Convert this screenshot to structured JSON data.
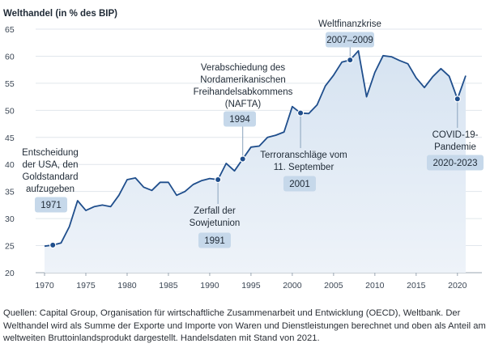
{
  "chart_data": {
    "type": "area",
    "title": "Welthandel (in % des BIP)",
    "xlim": [
      1970,
      2021
    ],
    "ylim": [
      20,
      65
    ],
    "y_ticks": [
      20,
      25,
      30,
      35,
      40,
      45,
      50,
      55,
      60,
      65
    ],
    "x_ticks": [
      1970,
      1975,
      1980,
      1985,
      1990,
      1995,
      2000,
      2005,
      2010,
      2015,
      2020
    ],
    "grid": true,
    "colors": {
      "line": "#1f4e8c",
      "fill": "#e3ecf6",
      "badge": "#c6d8ea",
      "marker": "#1f4e8c"
    },
    "series": [
      {
        "x": [
          1970,
          1971,
          1972,
          1973,
          1974,
          1975,
          1976,
          1977,
          1978,
          1979,
          1980,
          1981,
          1982,
          1983,
          1984,
          1985,
          1986,
          1987,
          1988,
          1989,
          1990,
          1991,
          1992,
          1993,
          1994,
          1995,
          1996,
          1997,
          1998,
          1999,
          2000,
          2001,
          2002,
          2003,
          2004,
          2005,
          2006,
          2007,
          2008,
          2009,
          2010,
          2011,
          2012,
          2013,
          2014,
          2015,
          2016,
          2017,
          2018,
          2019,
          2020,
          2021
        ],
        "y": [
          24.9,
          25.1,
          25.5,
          28.5,
          33.3,
          31.5,
          32.2,
          32.5,
          32.2,
          34.3,
          37.2,
          37.5,
          35.8,
          35.2,
          36.7,
          36.7,
          34.3,
          35.0,
          36.3,
          37.0,
          37.4,
          37.2,
          40.2,
          38.8,
          41.0,
          43.2,
          43.4,
          45.0,
          45.4,
          46.0,
          50.7,
          49.5,
          49.4,
          51.0,
          54.5,
          56.5,
          58.9,
          59.3,
          61.0,
          52.5,
          57.0,
          60.1,
          59.9,
          59.2,
          58.6,
          56.0,
          54.2,
          56.2,
          57.7,
          56.3,
          52.1,
          56.4
        ]
      }
    ],
    "annotations": [
      {
        "year": 1971,
        "value": 25.1,
        "text": [
          "Entscheidung",
          "der USA, den",
          "Goldstandard",
          "aufzugeben"
        ],
        "badge": "1971"
      },
      {
        "year": 1991,
        "value": 37.2,
        "text": [
          "Zerfall der",
          "Sowjetunion"
        ],
        "badge": "1991"
      },
      {
        "year": 1994,
        "value": 41.0,
        "text": [
          "Verabschiedung des",
          "Nordamerikanischen",
          "Freihandelsabkommens",
          "(NAFTA)"
        ],
        "badge": "1994"
      },
      {
        "year": 2001,
        "value": 49.5,
        "text": [
          "Terroranschläge vom",
          "11. September"
        ],
        "badge": "2001"
      },
      {
        "year": 2007,
        "value": 59.3,
        "text": [
          "Weltfinanzkrise"
        ],
        "badge": "2007–2009"
      },
      {
        "year": 2020,
        "value": 52.1,
        "text": [
          "COVID-19-",
          "Pandemie"
        ],
        "badge": "2020-2023"
      }
    ]
  },
  "source": "Quellen: Capital Group, Organisation für wirtschaftliche Zusammenarbeit und Entwicklung (OECD), Weltbank. Der Welthandel wird als Summe der Exporte und Importe von Waren und Dienstleistungen berechnet und oben als Anteil am weltweiten Bruttoinlandsprodukt dargestellt. Handelsdaten mit Stand von 2021."
}
